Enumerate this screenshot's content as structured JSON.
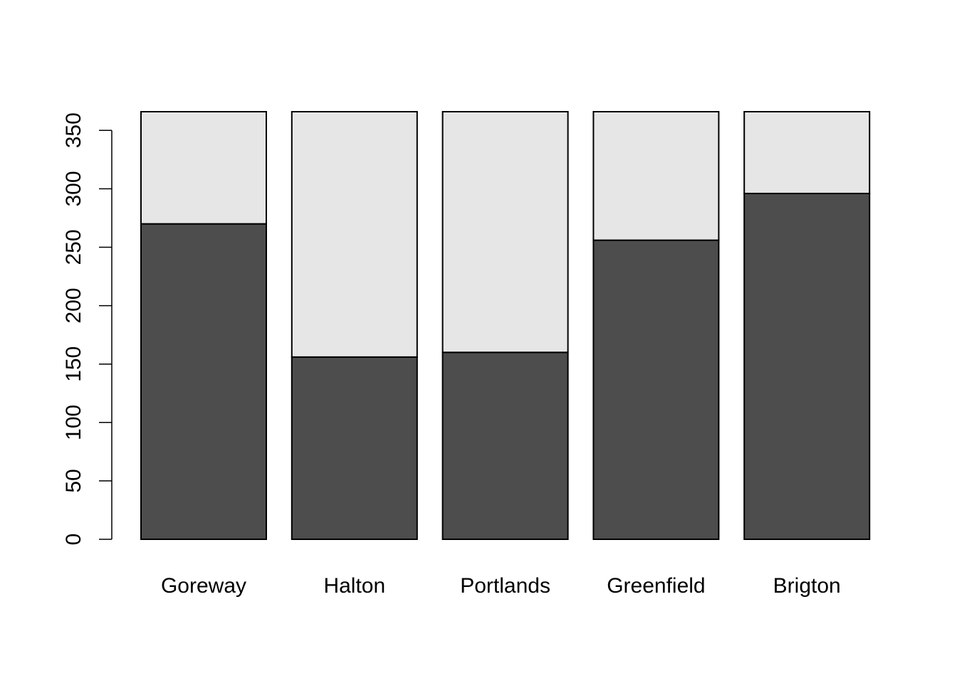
{
  "chart_data": {
    "type": "bar",
    "stacked": true,
    "title": "",
    "xlabel": "",
    "ylabel": "",
    "categories": [
      "Goreway",
      "Halton",
      "Portlands",
      "Greenfield",
      "Brigton"
    ],
    "series": [
      {
        "values": [
          270,
          156,
          160,
          256,
          296
        ],
        "color": "#4d4d4d"
      },
      {
        "values": [
          96,
          210,
          206,
          110,
          70
        ],
        "color": "#e6e6e6"
      }
    ],
    "totals": [
      366,
      366,
      366,
      366,
      366
    ],
    "ylim": [
      0,
      366
    ],
    "yticks": [
      0,
      50,
      100,
      150,
      200,
      250,
      300,
      350
    ],
    "grid": false,
    "legend": "none",
    "border_color": "#000000"
  }
}
